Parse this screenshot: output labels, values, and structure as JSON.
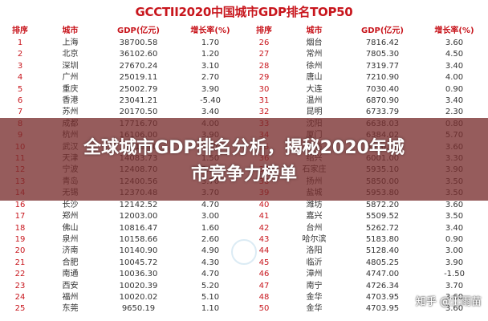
{
  "title": "GCCTII2020中国城市GDP排名TOP50",
  "headers": {
    "rank": "排序",
    "city": "城市",
    "gdp": "GDP(亿元)",
    "growth": "增长率(%)"
  },
  "left_rows": [
    [
      "1",
      "上海",
      "38700.58",
      "1.70"
    ],
    [
      "2",
      "北京",
      "36102.60",
      "1.20"
    ],
    [
      "3",
      "深圳",
      "27670.24",
      "3.10"
    ],
    [
      "4",
      "广州",
      "25019.11",
      "2.70"
    ],
    [
      "5",
      "重庆",
      "25002.79",
      "3.90"
    ],
    [
      "6",
      "香港",
      "23041.21",
      "-5.40"
    ],
    [
      "7",
      "苏州",
      "20170.50",
      "3.40"
    ],
    [
      "8",
      "成都",
      "17716.70",
      "4.00"
    ],
    [
      "9",
      "杭州",
      "16106.00",
      "3.90"
    ],
    [
      "10",
      "武汉",
      "15616.10",
      "-4.70"
    ],
    [
      "11",
      "天津",
      "14083.73",
      "1.50"
    ],
    [
      "12",
      "宁波",
      "12408.70",
      "3.30"
    ],
    [
      "13",
      "青岛",
      "12400.56",
      "3.70"
    ],
    [
      "14",
      "无锡",
      "12370.48",
      "3.70"
    ],
    [
      "16",
      "长沙",
      "12142.52",
      "4.70"
    ],
    [
      "17",
      "郑州",
      "12003.00",
      "3.00"
    ],
    [
      "18",
      "佛山",
      "10816.47",
      "1.60"
    ],
    [
      "19",
      "泉州",
      "10158.66",
      "2.60"
    ],
    [
      "20",
      "济南",
      "10140.90",
      "4.90"
    ],
    [
      "21",
      "合肥",
      "10045.72",
      "4.30"
    ],
    [
      "22",
      "南通",
      "10036.30",
      "4.70"
    ],
    [
      "23",
      "西安",
      "10020.39",
      "5.20"
    ],
    [
      "24",
      "福州",
      "10020.02",
      "5.10"
    ],
    [
      "25",
      "东莞",
      "9650.19",
      "1.10"
    ]
  ],
  "right_rows": [
    [
      "26",
      "烟台",
      "7816.42",
      "3.60"
    ],
    [
      "27",
      "常州",
      "7805.30",
      "4.50"
    ],
    [
      "28",
      "徐州",
      "7319.77",
      "3.40"
    ],
    [
      "29",
      "唐山",
      "7210.90",
      "4.00"
    ],
    [
      "30",
      "大连",
      "7030.40",
      "0.90"
    ],
    [
      "31",
      "温州",
      "6870.90",
      "3.40"
    ],
    [
      "32",
      "昆明",
      "6733.79",
      "2.30"
    ],
    [
      "33",
      "沈阳",
      "6638.03",
      "0.80"
    ],
    [
      "34",
      "厦门",
      "6384.02",
      "5.70"
    ],
    [
      "35",
      "潍坊",
      "6310.80",
      "3.60"
    ],
    [
      "36",
      "绍兴",
      "6001.00",
      "3.30"
    ],
    [
      "37",
      "石家庄",
      "5935.10",
      "3.90"
    ],
    [
      "38",
      "扬州",
      "5850.00",
      "3.50"
    ],
    [
      "39",
      "盐城",
      "5953.80",
      "3.50"
    ],
    [
      "40",
      "潍坊",
      "5872.20",
      "3.60"
    ],
    [
      "41",
      "嘉兴",
      "5509.52",
      "3.50"
    ],
    [
      "42",
      "台州",
      "5262.72",
      "3.40"
    ],
    [
      "43",
      "哈尔滨",
      "5183.80",
      "0.90"
    ],
    [
      "44",
      "洛阳",
      "5128.40",
      "3.00"
    ],
    [
      "45",
      "临沂",
      "4805.25",
      "3.90"
    ],
    [
      "46",
      "漳州",
      "4747.00",
      "-1.50"
    ],
    [
      "47",
      "南宁",
      "4726.34",
      "3.70"
    ],
    [
      "48",
      "金华",
      "4703.95",
      "3.60"
    ],
    [
      "50",
      "金华",
      "4703.95",
      "3.60"
    ]
  ],
  "banner": {
    "line1": "全球城市GDP排名分析，揭秘2020年城",
    "line2": "市竞争力榜单"
  },
  "watermark": "知乎 @王雨苗"
}
